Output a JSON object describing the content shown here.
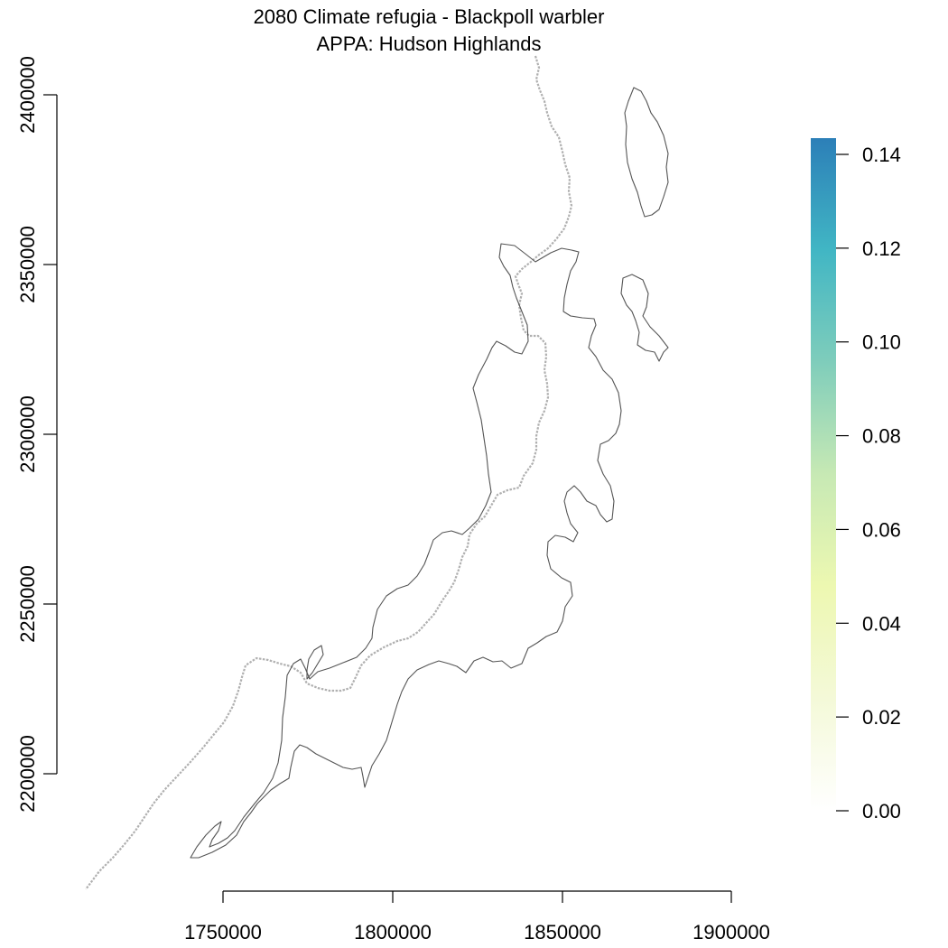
{
  "title": {
    "line1": "2080 Climate refugia - Blackpoll warbler",
    "line2": "APPA: Hudson Highlands"
  },
  "axes": {
    "x_ticks": [
      "1750000",
      "1800000",
      "1850000",
      "1900000"
    ],
    "y_ticks": [
      "2200000",
      "2250000",
      "2300000",
      "2350000",
      "2400000"
    ]
  },
  "legend": {
    "ticks": [
      "0.00",
      "0.02",
      "0.04",
      "0.06",
      "0.08",
      "0.10",
      "0.12",
      "0.14"
    ],
    "colors": [
      "#ffffff",
      "#f4f9d8",
      "#edf8b1",
      "#c7e9b4",
      "#7fcdbb",
      "#41b6c4",
      "#2c7fb8"
    ]
  },
  "colors": {
    "boundary": "#555555",
    "trail": "#b0b0b0"
  }
}
